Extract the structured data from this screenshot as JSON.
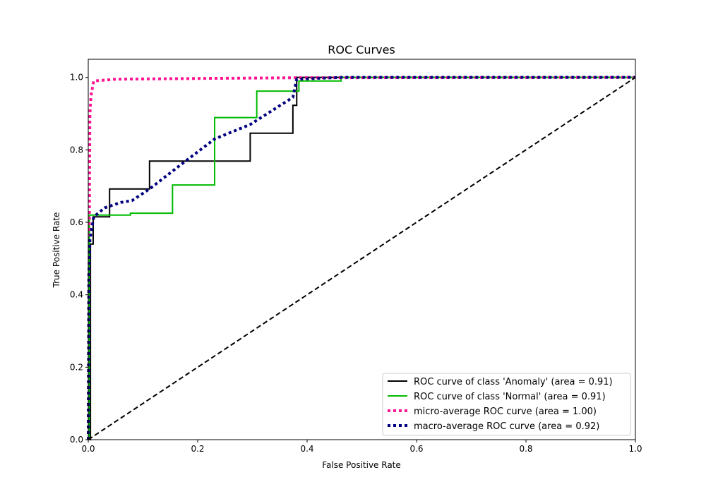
{
  "chart_data": {
    "type": "line",
    "title": "ROC Curves",
    "xlabel": "False Positive Rate",
    "ylabel": "True Positive Rate",
    "xlim": [
      0,
      1.0
    ],
    "ylim": [
      0,
      1.05
    ],
    "x_ticks": [
      "0.0",
      "0.2",
      "0.4",
      "0.6",
      "0.8",
      "1.0"
    ],
    "x_tick_values": [
      0,
      0.2,
      0.4,
      0.6,
      0.8,
      1.0
    ],
    "y_ticks": [
      "0.0",
      "0.2",
      "0.4",
      "0.6",
      "0.8",
      "1.0"
    ],
    "y_tick_values": [
      0,
      0.2,
      0.4,
      0.6,
      0.8,
      1.0
    ],
    "grid": false,
    "legend_position": "lower-right",
    "series": [
      {
        "name": "ROC curve of class 'Anomaly' (area = 0.91)",
        "color": "#000000",
        "style": "solid",
        "points": [
          [
            0,
            0
          ],
          [
            0.004,
            0
          ],
          [
            0.004,
            0.385
          ],
          [
            0.004,
            0.54
          ],
          [
            0.009,
            0.54
          ],
          [
            0.009,
            0.615
          ],
          [
            0.039,
            0.615
          ],
          [
            0.039,
            0.692
          ],
          [
            0.112,
            0.692
          ],
          [
            0.112,
            0.769
          ],
          [
            0.296,
            0.769
          ],
          [
            0.296,
            0.846
          ],
          [
            0.374,
            0.846
          ],
          [
            0.374,
            0.923
          ],
          [
            0.381,
            0.923
          ],
          [
            0.381,
            1.0
          ],
          [
            1.0,
            1.0
          ]
        ]
      },
      {
        "name": "ROC curve of class 'Normal' (area = 0.91)",
        "color": "#00bb00",
        "style": "solid",
        "points": [
          [
            0,
            0
          ],
          [
            0.002,
            0
          ],
          [
            0.002,
            0.62
          ],
          [
            0.077,
            0.62
          ],
          [
            0.077,
            0.625
          ],
          [
            0.154,
            0.625
          ],
          [
            0.154,
            0.703
          ],
          [
            0.231,
            0.703
          ],
          [
            0.231,
            0.889
          ],
          [
            0.308,
            0.889
          ],
          [
            0.308,
            0.962
          ],
          [
            0.385,
            0.962
          ],
          [
            0.385,
            0.99
          ],
          [
            0.462,
            0.99
          ],
          [
            0.462,
            1.0
          ],
          [
            1.0,
            1.0
          ]
        ]
      },
      {
        "name": "micro-average ROC curve (area = 1.00)",
        "color": "#ff1493",
        "style": "dotted",
        "points": [
          [
            0,
            0
          ],
          [
            0.001,
            0.3
          ],
          [
            0.002,
            0.6
          ],
          [
            0.003,
            0.9
          ],
          [
            0.005,
            0.95
          ],
          [
            0.01,
            0.99
          ],
          [
            0.05,
            0.995
          ],
          [
            0.2,
            0.997
          ],
          [
            0.38,
            0.999
          ],
          [
            1.0,
            1.0
          ]
        ]
      },
      {
        "name": "macro-average ROC curve (area = 0.92)",
        "color": "#000080",
        "style": "dotted",
        "points": [
          [
            0,
            0
          ],
          [
            0.001,
            0.45
          ],
          [
            0.003,
            0.55
          ],
          [
            0.005,
            0.57
          ],
          [
            0.01,
            0.615
          ],
          [
            0.03,
            0.64
          ],
          [
            0.06,
            0.655
          ],
          [
            0.08,
            0.66
          ],
          [
            0.112,
            0.692
          ],
          [
            0.17,
            0.76
          ],
          [
            0.231,
            0.83
          ],
          [
            0.296,
            0.87
          ],
          [
            0.374,
            0.945
          ],
          [
            0.381,
            0.995
          ],
          [
            0.462,
            1.0
          ],
          [
            1.0,
            1.0
          ]
        ]
      },
      {
        "name": "",
        "color": "#000000",
        "style": "dashed",
        "points": [
          [
            0,
            0
          ],
          [
            1.0,
            1.0
          ]
        ]
      }
    ]
  }
}
